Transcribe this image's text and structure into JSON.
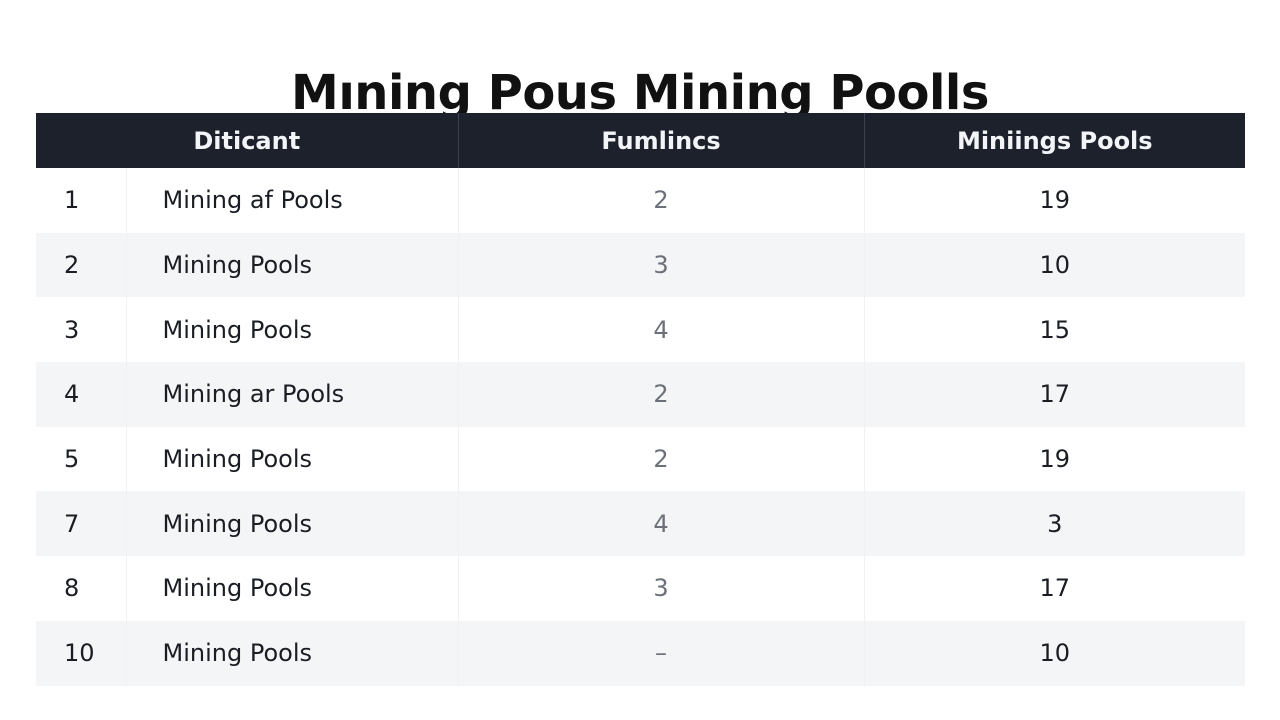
{
  "title": "Mıning Pous Mining Poolls",
  "table": {
    "headers": [
      "",
      "Diticant",
      "Fumlincs",
      "Miniings Pools"
    ],
    "rows": [
      {
        "index": "1",
        "name": "Mining af Pools",
        "fumlincs": "2",
        "pools": "19"
      },
      {
        "index": "2",
        "name": "Mining Pools",
        "fumlincs": "3",
        "pools": "10"
      },
      {
        "index": "3",
        "name": "Mining Pools",
        "fumlincs": "4",
        "pools": "15"
      },
      {
        "index": "4",
        "name": "Mining ar Pools",
        "fumlincs": "2",
        "pools": "17"
      },
      {
        "index": "5",
        "name": "Mining Pools",
        "fumlincs": "2",
        "pools": "19"
      },
      {
        "index": "7",
        "name": "Mining Pools",
        "fumlincs": "4",
        "pools": "3"
      },
      {
        "index": "8",
        "name": "Mining Pools",
        "fumlincs": "3",
        "pools": "17"
      },
      {
        "index": "10",
        "name": "Mining Pools",
        "fumlincs": "–",
        "pools": "10"
      }
    ]
  },
  "colors": {
    "header_bg": "#1c212b",
    "header_text": "#f2f4f7",
    "row_alt_bg": "#f4f5f6",
    "muted_text": "#6b7079"
  }
}
